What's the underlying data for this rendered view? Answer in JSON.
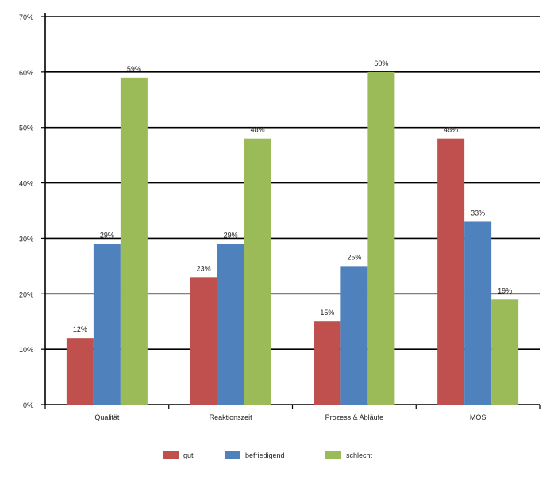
{
  "chart_data": {
    "type": "bar",
    "categories": [
      "Qualität",
      "Reaktionszeit",
      "Prozess & Abläufe",
      "MOS"
    ],
    "series": [
      {
        "name": "gut",
        "values": [
          12,
          23,
          15,
          48
        ],
        "labels": [
          "12%",
          "23%",
          "15%",
          "48%"
        ],
        "color": "#c0504d"
      },
      {
        "name": "befriedigend",
        "values": [
          29,
          29,
          25,
          33
        ],
        "labels": [
          "29%",
          "29%",
          "25%",
          "33%"
        ],
        "color": "#4f81bd"
      },
      {
        "name": "schlecht",
        "values": [
          59,
          48,
          60,
          19
        ],
        "labels": [
          "59%",
          "48%",
          "60%",
          "19%"
        ],
        "color": "#9bbb59"
      }
    ],
    "ylim": [
      0,
      70
    ],
    "yticks": [
      0,
      10,
      20,
      30,
      40,
      50,
      60,
      70
    ],
    "ytick_labels": [
      "0%",
      "10%",
      "20%",
      "30%",
      "40%",
      "50%",
      "60%",
      "70%"
    ],
    "title": "",
    "xlabel": "",
    "ylabel": "",
    "grid": true,
    "legend_position": "bottom"
  }
}
